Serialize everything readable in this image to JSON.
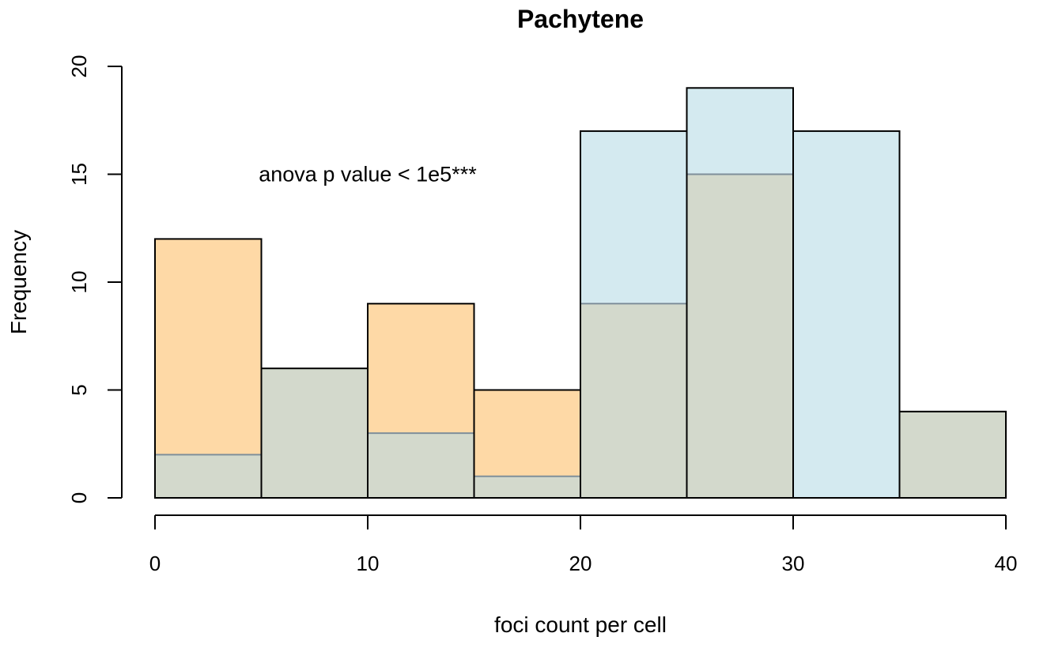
{
  "chart_data": {
    "type": "bar",
    "title": "Pachytene",
    "xlabel": "foci count per cell",
    "ylabel": "Frequency",
    "xlim": [
      0,
      40
    ],
    "ylim": [
      0,
      20
    ],
    "x_ticks": [
      "0",
      "10",
      "20",
      "30",
      "40"
    ],
    "y_ticks": [
      "0",
      "5",
      "10",
      "15",
      "20"
    ],
    "bin_edges": [
      0,
      5,
      10,
      15,
      20,
      25,
      30,
      35,
      40
    ],
    "grid": false,
    "series": [
      {
        "values": [
          2,
          6,
          3,
          1,
          17,
          19,
          17,
          4
        ],
        "color": "#d4eaf0"
      },
      {
        "values": [
          12,
          6,
          9,
          5,
          9,
          15,
          0,
          4
        ],
        "color": "#fed9a6",
        "overlap_color": "#d3d9cc"
      }
    ],
    "annotation": {
      "text": "anova p value < 1e5***",
      "x": 10,
      "y": 15
    }
  }
}
